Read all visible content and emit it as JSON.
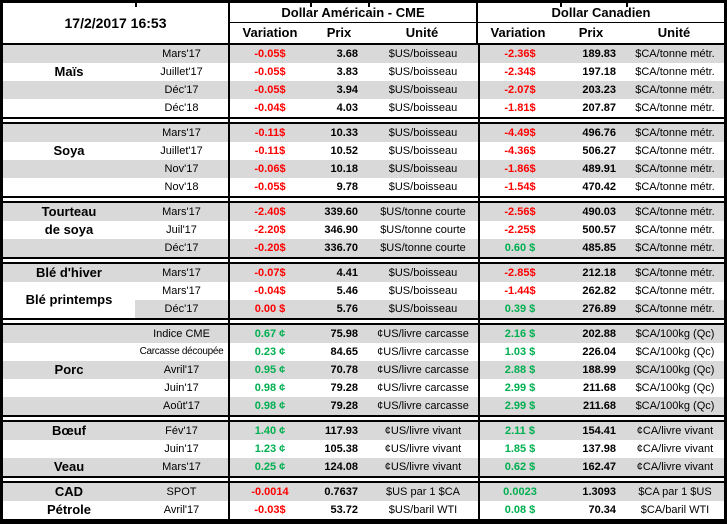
{
  "header": {
    "datetime": "17/2/2017 16:53",
    "usd_group_title": "Dollar Américain - CME",
    "cad_group_title": "Dollar Canadien",
    "col_variation": "Variation",
    "col_prix": "Prix",
    "col_unite": "Unité"
  },
  "colors": {
    "negative": "#FF0000",
    "positive": "#00B050",
    "row_stripe": "#D9D9D9",
    "border": "#000000"
  },
  "sections": [
    {
      "id": "mais",
      "rows": [
        {
          "label": "",
          "month": "Mars'17",
          "us_var": "-0.05$",
          "us_var_color": "red",
          "us_prix": "3.68",
          "us_unit": "$US/boisseau",
          "ca_var": "-2.36$",
          "ca_var_color": "red",
          "ca_prix": "189.83",
          "ca_unit": "$CA/tonne métr."
        },
        {
          "label": "Maïs",
          "month": "Juillet'17",
          "us_var": "-0.05$",
          "us_var_color": "red",
          "us_prix": "3.83",
          "us_unit": "$US/boisseau",
          "ca_var": "-2.34$",
          "ca_var_color": "red",
          "ca_prix": "197.18",
          "ca_unit": "$CA/tonne métr."
        },
        {
          "label": "",
          "month": "Déc'17",
          "us_var": "-0.05$",
          "us_var_color": "red",
          "us_prix": "3.94",
          "us_unit": "$US/boisseau",
          "ca_var": "-2.07$",
          "ca_var_color": "red",
          "ca_prix": "203.23",
          "ca_unit": "$CA/tonne métr."
        },
        {
          "label": "",
          "month": "Déc'18",
          "us_var": "-0.04$",
          "us_var_color": "red",
          "us_prix": "4.03",
          "us_unit": "$US/boisseau",
          "ca_var": "-1.81$",
          "ca_var_color": "red",
          "ca_prix": "207.87",
          "ca_unit": "$CA/tonne métr."
        }
      ]
    },
    {
      "id": "soya",
      "rows": [
        {
          "label": "",
          "month": "Mars'17",
          "us_var": "-0.11$",
          "us_var_color": "red",
          "us_prix": "10.33",
          "us_unit": "$US/boisseau",
          "ca_var": "-4.49$",
          "ca_var_color": "red",
          "ca_prix": "496.76",
          "ca_unit": "$CA/tonne métr."
        },
        {
          "label": "Soya",
          "month": "Juillet'17",
          "us_var": "-0.11$",
          "us_var_color": "red",
          "us_prix": "10.52",
          "us_unit": "$US/boisseau",
          "ca_var": "-4.36$",
          "ca_var_color": "red",
          "ca_prix": "506.27",
          "ca_unit": "$CA/tonne métr."
        },
        {
          "label": "",
          "month": "Nov'17",
          "us_var": "-0.06$",
          "us_var_color": "red",
          "us_prix": "10.18",
          "us_unit": "$US/boisseau",
          "ca_var": "-1.86$",
          "ca_var_color": "red",
          "ca_prix": "489.91",
          "ca_unit": "$CA/tonne métr."
        },
        {
          "label": "",
          "month": "Nov'18",
          "us_var": "-0.05$",
          "us_var_color": "red",
          "us_prix": "9.78",
          "us_unit": "$US/boisseau",
          "ca_var": "-1.54$",
          "ca_var_color": "red",
          "ca_prix": "470.42",
          "ca_unit": "$CA/tonne métr."
        }
      ]
    },
    {
      "id": "tourteau-de-soya",
      "rows": [
        {
          "label": "Tourteau",
          "month": "Mars'17",
          "us_var": "-2.40$",
          "us_var_color": "red",
          "us_prix": "339.60",
          "us_unit": "$US/tonne courte",
          "ca_var": "-2.56$",
          "ca_var_color": "red",
          "ca_prix": "490.03",
          "ca_unit": "$CA/tonne métr."
        },
        {
          "label": "de soya",
          "month": "Juil'17",
          "us_var": "-2.20$",
          "us_var_color": "red",
          "us_prix": "346.90",
          "us_unit": "$US/tonne courte",
          "ca_var": "-2.25$",
          "ca_var_color": "red",
          "ca_prix": "500.57",
          "ca_unit": "$CA/tonne métr."
        },
        {
          "label": "",
          "month": "Déc'17",
          "us_var": "-0.20$",
          "us_var_color": "red",
          "us_prix": "336.70",
          "us_unit": "$US/tonne courte",
          "ca_var": "0.60 $",
          "ca_var_color": "green",
          "ca_prix": "485.85",
          "ca_unit": "$CA/tonne métr."
        }
      ]
    },
    {
      "id": "ble",
      "rows": [
        {
          "label": "Blé d'hiver",
          "month": "Mars'17",
          "us_var": "-0.07$",
          "us_var_color": "red",
          "us_prix": "4.41",
          "us_unit": "$US/boisseau",
          "ca_var": "-2.85$",
          "ca_var_color": "red",
          "ca_prix": "212.18",
          "ca_unit": "$CA/tonne métr."
        },
        {
          "label": "Blé printemps",
          "label_span2": true,
          "month": "Mars'17",
          "us_var": "-0.04$",
          "us_var_color": "red",
          "us_prix": "5.46",
          "us_unit": "$US/boisseau",
          "ca_var": "-1.44$",
          "ca_var_color": "red",
          "ca_prix": "262.82",
          "ca_unit": "$CA/tonne métr."
        },
        {
          "label": "",
          "label_white": true,
          "month": "Déc'17",
          "us_var": "0.00 $",
          "us_var_color": "red",
          "us_prix": "5.76",
          "us_unit": "$US/boisseau",
          "ca_var": "0.39 $",
          "ca_var_color": "green",
          "ca_prix": "276.89",
          "ca_unit": "$CA/tonne métr."
        }
      ]
    },
    {
      "id": "porc",
      "rows": [
        {
          "label": "",
          "month": "Indice CME",
          "us_var": "0.67 ¢",
          "us_var_color": "green",
          "us_prix": "75.98",
          "us_unit": "¢US/livre carcasse",
          "ca_var": "2.16 $",
          "ca_var_color": "green",
          "ca_prix": "202.88",
          "ca_unit": "$CA/100kg (Qc)"
        },
        {
          "label": "",
          "month": "Carcasse découpée",
          "month_small": true,
          "us_var": "0.23 ¢",
          "us_var_color": "green",
          "us_prix": "84.65",
          "us_unit": "¢US/livre carcasse",
          "ca_var": "1.03 $",
          "ca_var_color": "green",
          "ca_prix": "226.04",
          "ca_unit": "$CA/100kg (Qc)"
        },
        {
          "label": "Porc",
          "month": "Avril'17",
          "us_var": "0.95 ¢",
          "us_var_color": "green",
          "us_prix": "70.78",
          "us_unit": "¢US/livre carcasse",
          "ca_var": "2.88 $",
          "ca_var_color": "green",
          "ca_prix": "188.99",
          "ca_unit": "$CA/100kg (Qc)"
        },
        {
          "label": "",
          "month": "Juin'17",
          "us_var": "0.98 ¢",
          "us_var_color": "green",
          "us_prix": "79.28",
          "us_unit": "¢US/livre carcasse",
          "ca_var": "2.99 $",
          "ca_var_color": "green",
          "ca_prix": "211.68",
          "ca_unit": "$CA/100kg (Qc)"
        },
        {
          "label": "",
          "month": "Août'17",
          "us_var": "0.98 ¢",
          "us_var_color": "green",
          "us_prix": "79.28",
          "us_unit": "¢US/livre carcasse",
          "ca_var": "2.99 $",
          "ca_var_color": "green",
          "ca_prix": "211.68",
          "ca_unit": "$CA/100kg (Qc)"
        }
      ]
    },
    {
      "id": "boeuf-veau",
      "rows": [
        {
          "label": "Bœuf",
          "month": "Fév'17",
          "us_var": "1.40 ¢",
          "us_var_color": "green",
          "us_prix": "117.93",
          "us_unit": "¢US/livre vivant",
          "ca_var": "2.11 $",
          "ca_var_color": "green",
          "ca_prix": "154.41",
          "ca_unit": "¢CA/livre vivant"
        },
        {
          "label": "",
          "month": "Juin'17",
          "us_var": "1.23 ¢",
          "us_var_color": "green",
          "us_prix": "105.38",
          "us_unit": "¢US/livre vivant",
          "ca_var": "1.85 $",
          "ca_var_color": "green",
          "ca_prix": "137.98",
          "ca_unit": "¢CA/livre vivant"
        },
        {
          "label": "Veau",
          "month": "Mars'17",
          "us_var": "0.25 ¢",
          "us_var_color": "green",
          "us_prix": "124.08",
          "us_unit": "¢US/livre vivant",
          "ca_var": "0.62 $",
          "ca_var_color": "green",
          "ca_prix": "162.47",
          "ca_unit": "¢CA/livre vivant"
        }
      ]
    },
    {
      "id": "cad-petrole",
      "rows": [
        {
          "label": "CAD",
          "month": "SPOT",
          "us_var": "-0.0014",
          "us_var_color": "red",
          "us_prix": "0.7637",
          "us_unit": "$US par 1 $CA",
          "ca_var": "0.0023",
          "ca_var_color": "green",
          "ca_prix": "1.3093",
          "ca_unit": "$CA par 1 $US"
        },
        {
          "label": "Pétrole",
          "month": "Avril'17",
          "us_var": "-0.03$",
          "us_var_color": "red",
          "us_prix": "53.72",
          "us_unit": "$US/baril WTI",
          "ca_var": "0.08 $",
          "ca_var_color": "green",
          "ca_prix": "70.34",
          "ca_unit": "$CA/baril WTI"
        }
      ]
    }
  ]
}
